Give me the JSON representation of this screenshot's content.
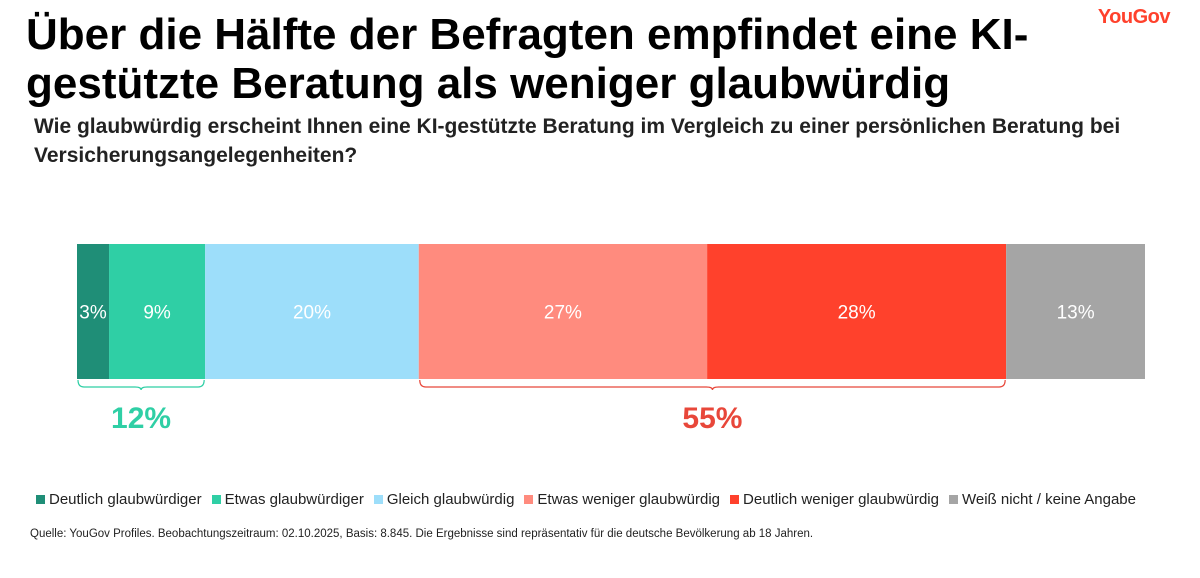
{
  "header": {
    "title": "Über die Hälfte der Befragten empfindet eine KI-gestützte Beratung als weniger glaubwürdig",
    "subtitle": "Wie glaubwürdig erscheint Ihnen eine KI-gestützte Beratung im Vergleich zu einer persönlichen Beratung bei Versicherungsangelegenheiten?",
    "logo": "YouGov"
  },
  "chart_data": {
    "type": "bar",
    "orientation": "horizontal-stacked",
    "series": [
      {
        "name": "Deutlich glaubwürdiger",
        "value": 3,
        "label": "3%",
        "color": "#1f8e77"
      },
      {
        "name": "Etwas glaubwürdiger",
        "value": 9,
        "label": "9%",
        "color": "#2fcfa5"
      },
      {
        "name": "Gleich glaubwürdig",
        "value": 20,
        "label": "20%",
        "color": "#9ddefa"
      },
      {
        "name": "Etwas weniger glaubwürdig",
        "value": 27,
        "label": "27%",
        "color": "#ff8b7e"
      },
      {
        "name": "Deutlich weniger glaubwürdig",
        "value": 28,
        "label": "28%",
        "color": "#ff412c"
      },
      {
        "name": "Weiß nicht / keine Angabe",
        "value": 13,
        "label": "13%",
        "color": "#a5a5a5"
      }
    ],
    "brackets": [
      {
        "from": 0,
        "to": 1,
        "label": "12%",
        "color": "#2fcfa5"
      },
      {
        "from": 3,
        "to": 4,
        "label": "55%",
        "color": "#e8473a"
      }
    ],
    "legend_position": "bottom"
  },
  "footer": {
    "source": "Quelle: YouGov Profiles. Beobachtungszeitraum: 02.10.2025, Basis: 8.845. Die Ergebnisse sind repräsentativ für die deutsche Bevölkerung ab 18 Jahren."
  }
}
